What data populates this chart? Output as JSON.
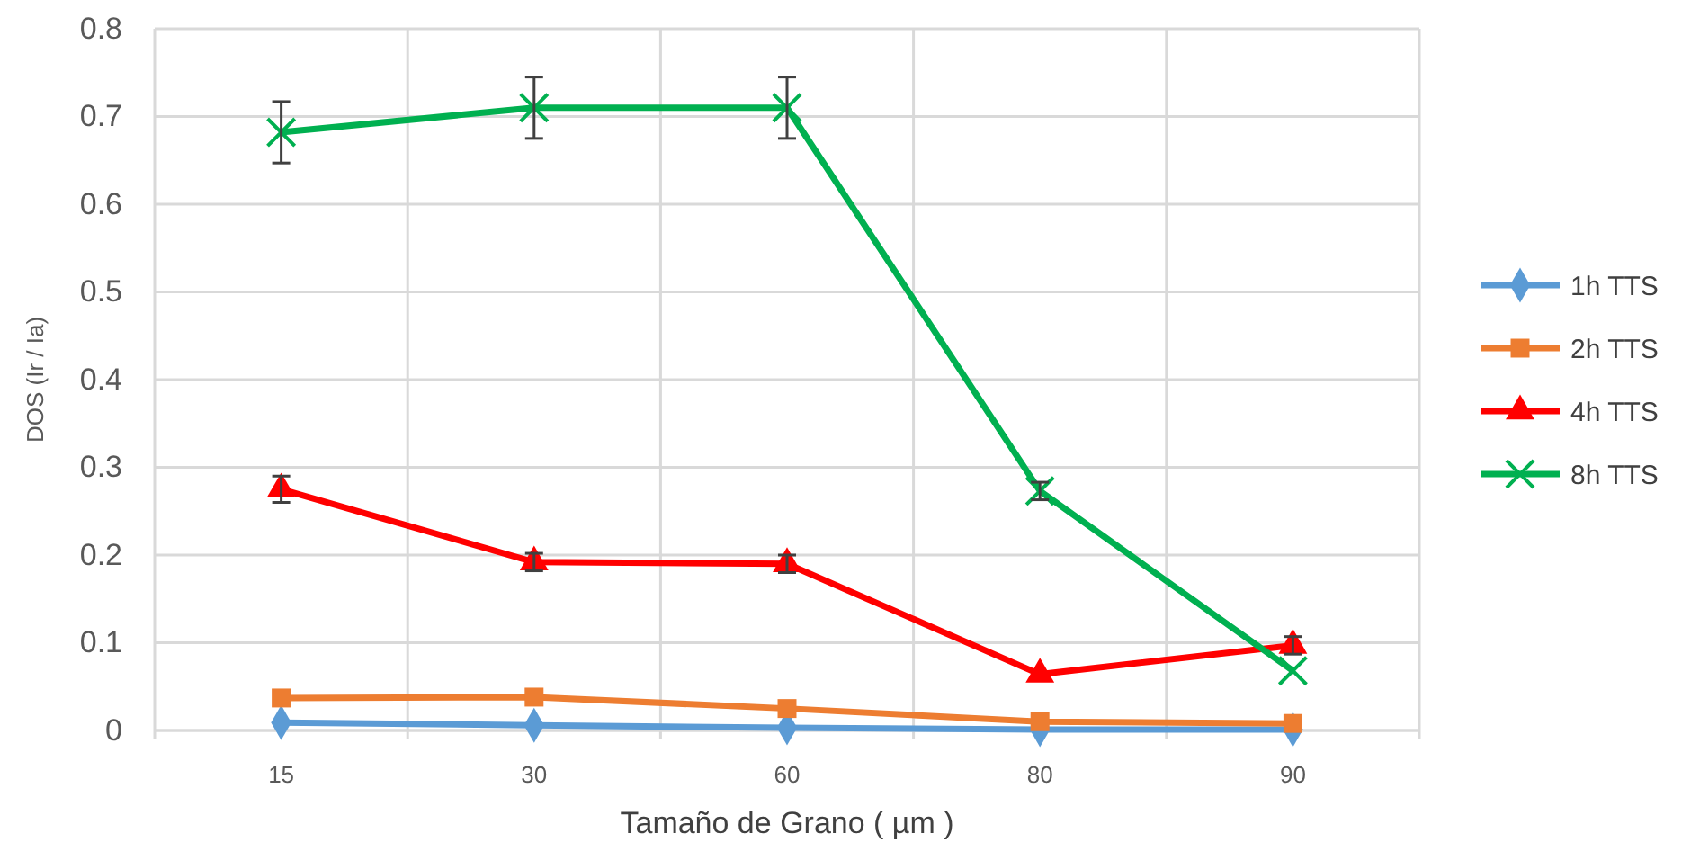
{
  "chart_data": {
    "type": "line",
    "xlabel": "Tamaño de Grano  ( µm )",
    "ylabel": "DOS  (Ir / Ia)",
    "categories": [
      "15",
      "30",
      "60",
      "80",
      "90"
    ],
    "series": [
      {
        "name": "1h TTS",
        "color": "#5b9bd5",
        "marker": "diamond",
        "values": [
          0.009,
          0.006,
          0.003,
          0.001,
          0.001
        ]
      },
      {
        "name": "2h TTS",
        "color": "#ed7d31",
        "marker": "square",
        "values": [
          0.037,
          0.038,
          0.025,
          0.01,
          0.008
        ]
      },
      {
        "name": "4h TTS",
        "color": "#ff0000",
        "marker": "triangle",
        "values": [
          0.275,
          0.192,
          0.19,
          0.064,
          0.097
        ],
        "errors": [
          0.015,
          0.01,
          0.01,
          null,
          0.01
        ]
      },
      {
        "name": "8h TTS",
        "color": "#00b050",
        "marker": "cross",
        "values": [
          0.682,
          0.71,
          0.71,
          0.273,
          0.068
        ],
        "errors": [
          0.035,
          0.035,
          0.035,
          0.01,
          null
        ]
      }
    ],
    "ylim": [
      0,
      0.8
    ],
    "yticks": [
      0,
      0.1,
      0.2,
      0.3,
      0.4,
      0.5,
      0.6,
      0.7,
      0.8
    ],
    "grid": true,
    "legend": "right"
  }
}
